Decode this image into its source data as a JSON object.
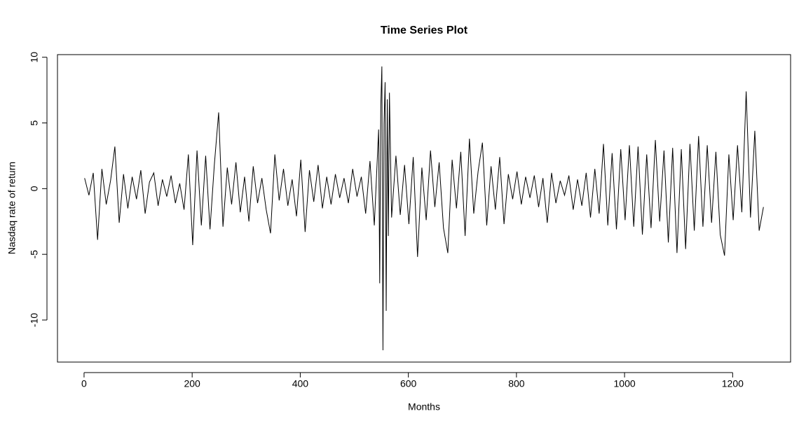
{
  "chart_data": {
    "type": "line",
    "title": "Time Series Plot",
    "x_label": "Months",
    "y_label": "Nasdaq rate of return",
    "color": "#000000",
    "x": [
      1,
      9,
      17,
      25,
      33,
      41,
      49,
      57,
      65,
      73,
      81,
      89,
      97,
      105,
      113,
      121,
      129,
      137,
      145,
      153,
      161,
      169,
      177,
      185,
      193,
      201,
      209,
      217,
      225,
      233,
      241,
      249,
      257,
      265,
      273,
      281,
      289,
      297,
      305,
      313,
      321,
      329,
      337,
      345,
      353,
      361,
      369,
      377,
      385,
      393,
      401,
      409,
      417,
      425,
      433,
      441,
      449,
      457,
      465,
      473,
      481,
      489,
      497,
      505,
      513,
      521,
      529,
      537,
      545,
      547,
      549,
      551,
      553,
      555,
      557,
      559,
      561,
      563,
      565,
      569,
      577,
      585,
      593,
      601,
      609,
      617,
      625,
      633,
      641,
      649,
      657,
      665,
      673,
      681,
      689,
      697,
      705,
      713,
      721,
      729,
      737,
      745,
      753,
      761,
      769,
      777,
      785,
      793,
      801,
      809,
      817,
      825,
      833,
      841,
      849,
      857,
      865,
      873,
      881,
      889,
      897,
      905,
      913,
      921,
      929,
      937,
      945,
      953,
      961,
      969,
      977,
      985,
      993,
      1001,
      1009,
      1017,
      1025,
      1033,
      1041,
      1049,
      1057,
      1065,
      1073,
      1081,
      1089,
      1097,
      1105,
      1113,
      1121,
      1129,
      1137,
      1145,
      1153,
      1161,
      1169,
      1177,
      1185,
      1193,
      1201,
      1209,
      1217,
      1225,
      1233,
      1241,
      1249,
      1257
    ],
    "values": [
      0.8,
      -0.5,
      1.2,
      -3.9,
      1.5,
      -1.2,
      0.6,
      3.2,
      -2.6,
      1.1,
      -1.5,
      0.9,
      -0.8,
      1.4,
      -1.9,
      0.5,
      1.2,
      -1.3,
      0.7,
      -0.6,
      1.0,
      -1.1,
      0.4,
      -1.6,
      2.6,
      -4.3,
      2.9,
      -2.8,
      2.5,
      -3.1,
      1.8,
      5.8,
      -2.9,
      1.6,
      -1.2,
      2.0,
      -1.8,
      0.9,
      -2.5,
      1.7,
      -1.1,
      0.8,
      -1.6,
      -3.4,
      2.6,
      -0.9,
      1.5,
      -1.3,
      0.7,
      -2.1,
      2.2,
      -3.3,
      1.4,
      -1.0,
      1.8,
      -1.5,
      0.9,
      -1.2,
      1.1,
      -0.7,
      0.8,
      -1.1,
      1.5,
      -0.6,
      0.9,
      -1.9,
      2.1,
      -2.8,
      4.5,
      -7.2,
      6.3,
      9.3,
      -12.3,
      4.9,
      8.1,
      -9.3,
      6.8,
      -3.6,
      7.3,
      -2.2,
      2.5,
      -2.0,
      1.8,
      -2.7,
      2.4,
      -5.2,
      1.6,
      -2.4,
      2.9,
      -1.4,
      2.0,
      -3.0,
      -4.9,
      2.2,
      -1.5,
      2.8,
      -3.6,
      3.8,
      -1.9,
      1.3,
      3.5,
      -2.8,
      1.7,
      -1.6,
      2.4,
      -2.7,
      1.1,
      -0.8,
      1.3,
      -1.2,
      0.9,
      -0.7,
      1.0,
      -1.4,
      0.8,
      -2.6,
      1.2,
      -1.1,
      0.6,
      -0.5,
      1.0,
      -1.6,
      0.7,
      -1.3,
      1.2,
      -2.2,
      1.5,
      -1.9,
      3.4,
      -2.8,
      2.7,
      -3.1,
      3.0,
      -2.4,
      3.3,
      -2.9,
      3.2,
      -3.5,
      2.6,
      -3.0,
      3.7,
      -2.5,
      2.9,
      -4.1,
      3.1,
      -4.9,
      3.0,
      -4.6,
      3.4,
      -3.2,
      4.0,
      -2.9,
      3.3,
      -2.6,
      2.8,
      -3.5,
      -5.1,
      2.6,
      -2.4,
      3.3,
      -1.8,
      7.4,
      -2.2,
      4.4,
      -3.2,
      -1.4
    ],
    "xlim": [
      -49.2,
      1307.2
    ],
    "ylim": [
      -13.2,
      10.2
    ],
    "xticks": [
      0,
      200,
      400,
      600,
      800,
      1000,
      1200
    ],
    "yticks": [
      -10,
      -5,
      0,
      5,
      10
    ]
  }
}
